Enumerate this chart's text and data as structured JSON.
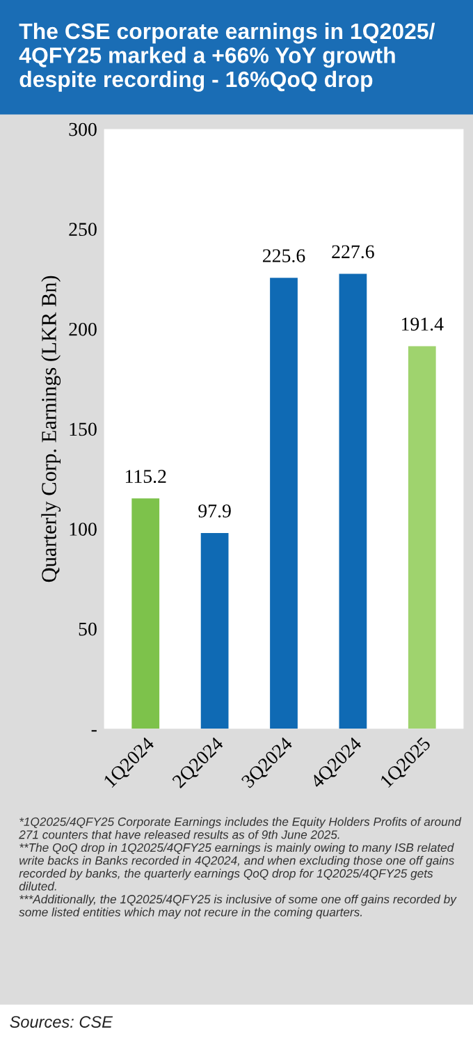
{
  "chart_data": {
    "type": "bar",
    "title": "The CSE corporate earnings in 1Q2025/ 4QFY25 marked a +66% YoY growth despite recording - 16%QoQ drop",
    "ylabel": "Quarterly Corp. Earnings (LKR Bn)",
    "categories": [
      "1Q2024",
      "2Q2024",
      "3Q2024",
      "4Q2024",
      "1Q2025"
    ],
    "values": [
      115.2,
      97.9,
      225.6,
      227.6,
      191.4
    ],
    "colors": [
      "#7dc24b",
      "#0f6ab4",
      "#0f6ab4",
      "#0f6ab4",
      "#9fd36e"
    ],
    "data_labels": true,
    "ylim": [
      0,
      300
    ],
    "yticks": [
      {
        "value": 0,
        "label": "-"
      },
      50,
      100,
      150,
      200,
      250,
      300
    ],
    "grid": false,
    "annotations": [
      "*1Q2025/4QFY25 Corporate Earnings includes the Equity Holders Profits of around 271 counters that have released results as of 9th June 2025.",
      "**The QoQ drop in 1Q2025/4QFY25 earnings is mainly owing to many ISB related write backs in Banks recorded in 4Q2024, and when excluding those one off gains recorded by banks, the quarterly earnings QoQ drop for 1Q2025/4QFY25 gets diluted.",
      "***Additionally, the 1Q2025/4QFY25 is inclusive of some one off gains recorded by some listed entities which may not recure in the coming quarters.",
      "Sources: CSE"
    ]
  }
}
